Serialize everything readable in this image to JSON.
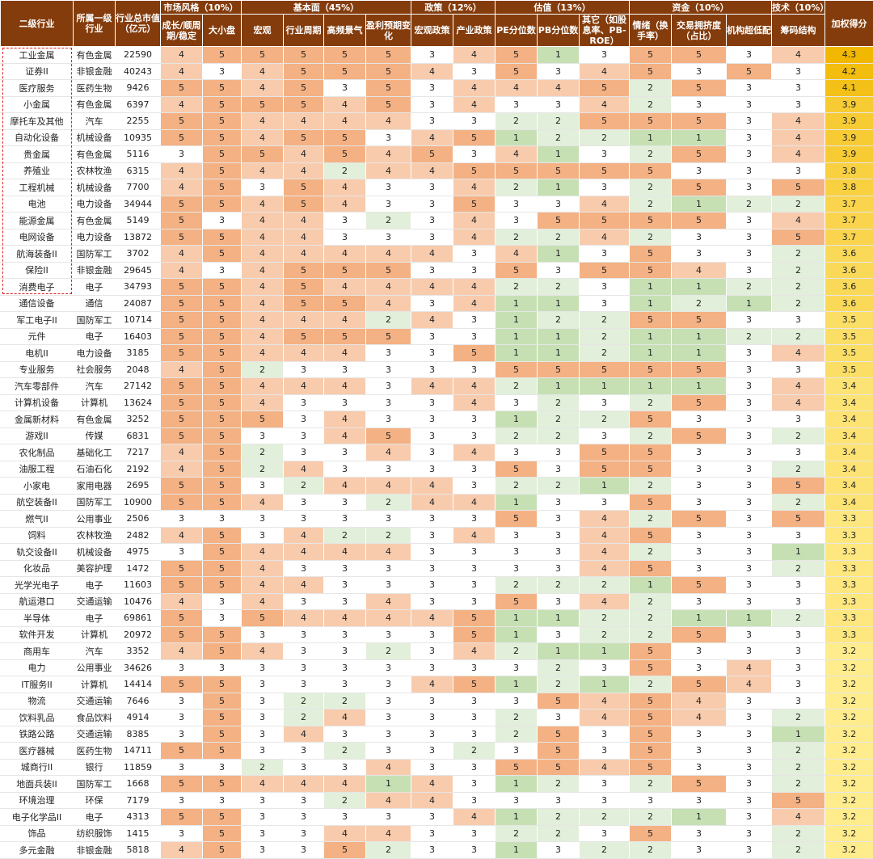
{
  "header": {
    "groups": [
      "市场风格（10%）",
      "基本面（45%）",
      "政策（12%）",
      "估值（13%）",
      "资金（10%）",
      "技术（10%）"
    ],
    "columns": [
      "二级行业",
      "所属一级行业",
      "行业总市值（亿元）",
      "成长/顺周期/稳定",
      "大小盘",
      "宏观",
      "行业周期",
      "高频景气",
      "盈利预期变化",
      "宏观政策",
      "产业政策",
      "PE分位数",
      "PB分位数",
      "其它（如股息率、PB-ROE）",
      "情绪（换手率）",
      "交易拥挤度（占比）",
      "机构超低配",
      "筹码结构",
      "加权得分"
    ]
  },
  "table": {
    "rows": [
      [
        "工业金属",
        "有色金属",
        22590,
        4,
        5,
        5,
        5,
        5,
        5,
        3,
        4,
        5,
        1,
        3,
        5,
        5,
        3,
        4,
        4.3
      ],
      [
        "证券II",
        "非银金融",
        40243,
        4,
        3,
        4,
        5,
        5,
        5,
        4,
        3,
        5,
        3,
        4,
        5,
        3,
        5,
        3,
        4.2
      ],
      [
        "医疗服务",
        "医药生物",
        9426,
        5,
        5,
        4,
        5,
        3,
        5,
        3,
        4,
        4,
        4,
        5,
        2,
        5,
        3,
        3,
        4.1
      ],
      [
        "小金属",
        "有色金属",
        6397,
        4,
        5,
        5,
        5,
        4,
        5,
        3,
        4,
        3,
        3,
        4,
        2,
        3,
        3,
        3,
        3.9
      ],
      [
        "摩托车及其他",
        "汽车",
        2255,
        5,
        5,
        4,
        4,
        4,
        4,
        3,
        3,
        2,
        2,
        5,
        5,
        5,
        3,
        4,
        3.9
      ],
      [
        "自动化设备",
        "机械设备",
        10935,
        5,
        5,
        4,
        5,
        5,
        3,
        4,
        5,
        1,
        2,
        2,
        1,
        1,
        3,
        4,
        3.9
      ],
      [
        "贵金属",
        "有色金属",
        5116,
        3,
        5,
        5,
        4,
        5,
        4,
        5,
        3,
        4,
        1,
        3,
        2,
        5,
        3,
        4,
        3.9
      ],
      [
        "养殖业",
        "农林牧渔",
        6315,
        4,
        5,
        4,
        4,
        2,
        4,
        4,
        5,
        5,
        5,
        5,
        5,
        3,
        3,
        3,
        3.8
      ],
      [
        "工程机械",
        "机械设备",
        7700,
        4,
        5,
        3,
        5,
        4,
        3,
        3,
        4,
        2,
        1,
        3,
        2,
        5,
        3,
        5,
        3.8
      ],
      [
        "电池",
        "电力设备",
        34944,
        5,
        5,
        4,
        5,
        4,
        3,
        3,
        5,
        3,
        3,
        4,
        2,
        1,
        2,
        2,
        3.7
      ],
      [
        "能源金属",
        "有色金属",
        5149,
        5,
        3,
        4,
        4,
        3,
        2,
        3,
        4,
        3,
        5,
        5,
        5,
        5,
        3,
        4,
        3.7
      ],
      [
        "电网设备",
        "电力设备",
        13872,
        5,
        5,
        4,
        4,
        3,
        3,
        3,
        4,
        2,
        2,
        4,
        2,
        3,
        3,
        5,
        3.7
      ],
      [
        "航海装备II",
        "国防军工",
        3702,
        4,
        5,
        4,
        4,
        4,
        4,
        4,
        3,
        4,
        1,
        3,
        5,
        3,
        3,
        2,
        3.6
      ],
      [
        "保险II",
        "非银金融",
        29645,
        4,
        3,
        4,
        5,
        5,
        5,
        3,
        3,
        5,
        3,
        5,
        5,
        4,
        3,
        2,
        3.6
      ],
      [
        "消费电子",
        "电子",
        34793,
        5,
        5,
        4,
        5,
        4,
        4,
        4,
        4,
        2,
        2,
        3,
        1,
        1,
        2,
        2,
        3.6
      ],
      [
        "通信设备",
        "通信",
        24087,
        5,
        5,
        4,
        5,
        5,
        4,
        3,
        4,
        1,
        1,
        3,
        1,
        2,
        1,
        2,
        3.6
      ],
      [
        "军工电子II",
        "国防军工",
        10714,
        5,
        5,
        4,
        4,
        4,
        2,
        4,
        3,
        1,
        2,
        2,
        5,
        5,
        3,
        3,
        3.5
      ],
      [
        "元件",
        "电子",
        16403,
        5,
        5,
        4,
        5,
        5,
        5,
        3,
        3,
        1,
        1,
        2,
        1,
        1,
        2,
        2,
        3.5
      ],
      [
        "电机II",
        "电力设备",
        3185,
        5,
        5,
        4,
        4,
        4,
        3,
        3,
        5,
        1,
        1,
        2,
        1,
        1,
        3,
        4,
        3.5
      ],
      [
        "专业服务",
        "社会服务",
        2048,
        4,
        5,
        2,
        3,
        3,
        3,
        3,
        3,
        5,
        5,
        5,
        5,
        5,
        3,
        3,
        3.5
      ],
      [
        "汽车零部件",
        "汽车",
        27142,
        5,
        5,
        4,
        4,
        4,
        3,
        4,
        4,
        2,
        1,
        1,
        1,
        1,
        3,
        4,
        3.4
      ],
      [
        "计算机设备",
        "计算机",
        13624,
        5,
        5,
        4,
        3,
        3,
        3,
        3,
        4,
        3,
        2,
        3,
        2,
        5,
        3,
        4,
        3.4
      ],
      [
        "金属新材料",
        "有色金属",
        3252,
        5,
        5,
        5,
        3,
        4,
        3,
        3,
        3,
        1,
        2,
        2,
        5,
        3,
        3,
        3,
        3.4
      ],
      [
        "游戏II",
        "传媒",
        6831,
        5,
        5,
        3,
        3,
        4,
        5,
        3,
        3,
        2,
        2,
        3,
        2,
        5,
        3,
        2,
        3.4
      ],
      [
        "农化制品",
        "基础化工",
        7217,
        4,
        5,
        2,
        3,
        3,
        4,
        3,
        4,
        3,
        3,
        5,
        5,
        3,
        3,
        3,
        3.4
      ],
      [
        "油服工程",
        "石油石化",
        2192,
        4,
        5,
        2,
        4,
        3,
        3,
        3,
        3,
        5,
        3,
        5,
        5,
        3,
        3,
        2,
        3.4
      ],
      [
        "小家电",
        "家用电器",
        2695,
        5,
        5,
        3,
        2,
        4,
        4,
        4,
        3,
        2,
        2,
        1,
        2,
        3,
        3,
        5,
        3.4
      ],
      [
        "航空装备II",
        "国防军工",
        10900,
        5,
        5,
        4,
        3,
        3,
        2,
        4,
        4,
        1,
        3,
        3,
        5,
        3,
        3,
        2,
        3.4
      ],
      [
        "燃气II",
        "公用事业",
        2506,
        3,
        3,
        3,
        3,
        3,
        3,
        3,
        3,
        5,
        3,
        4,
        2,
        5,
        3,
        5,
        3.3
      ],
      [
        "饲料",
        "农林牧渔",
        2482,
        4,
        5,
        3,
        4,
        2,
        2,
        3,
        4,
        3,
        3,
        4,
        5,
        3,
        3,
        3,
        3.3
      ],
      [
        "轨交设备II",
        "机械设备",
        4975,
        3,
        5,
        4,
        4,
        4,
        4,
        3,
        3,
        3,
        3,
        4,
        2,
        3,
        3,
        1,
        3.3
      ],
      [
        "化妆品",
        "美容护理",
        1472,
        5,
        5,
        4,
        3,
        3,
        3,
        3,
        3,
        3,
        3,
        4,
        5,
        3,
        3,
        2,
        3.3
      ],
      [
        "光学光电子",
        "电子",
        11603,
        5,
        5,
        4,
        4,
        3,
        3,
        3,
        3,
        2,
        2,
        2,
        1,
        5,
        3,
        3,
        3.3
      ],
      [
        "航运港口",
        "交通运输",
        10476,
        4,
        3,
        4,
        3,
        3,
        4,
        3,
        3,
        5,
        3,
        4,
        2,
        3,
        3,
        3,
        3.3
      ],
      [
        "半导体",
        "电子",
        69861,
        5,
        3,
        5,
        4,
        4,
        4,
        4,
        5,
        1,
        1,
        2,
        2,
        1,
        1,
        2,
        3.3
      ],
      [
        "软件开发",
        "计算机",
        20972,
        5,
        5,
        3,
        3,
        3,
        3,
        3,
        5,
        1,
        3,
        2,
        2,
        5,
        3,
        3,
        3.3
      ],
      [
        "商用车",
        "汽车",
        3352,
        4,
        5,
        4,
        3,
        3,
        2,
        3,
        4,
        2,
        1,
        1,
        5,
        3,
        3,
        3,
        3.2
      ],
      [
        "电力",
        "公用事业",
        34626,
        3,
        3,
        3,
        3,
        3,
        3,
        3,
        3,
        3,
        2,
        3,
        5,
        3,
        4,
        3,
        3.2
      ],
      [
        "IT服务II",
        "计算机",
        14414,
        5,
        5,
        3,
        3,
        3,
        3,
        4,
        5,
        1,
        2,
        1,
        2,
        5,
        4,
        3,
        3.2
      ],
      [
        "物流",
        "交通运输",
        7646,
        3,
        5,
        3,
        2,
        2,
        3,
        3,
        3,
        3,
        5,
        4,
        5,
        4,
        3,
        3,
        3.2
      ],
      [
        "饮料乳品",
        "食品饮料",
        4914,
        3,
        5,
        3,
        2,
        4,
        3,
        3,
        3,
        2,
        3,
        4,
        5,
        4,
        3,
        2,
        3.2
      ],
      [
        "铁路公路",
        "交通运输",
        8385,
        3,
        5,
        3,
        4,
        3,
        3,
        3,
        3,
        2,
        5,
        3,
        5,
        3,
        3,
        1,
        3.2
      ],
      [
        "医疗器械",
        "医药生物",
        14711,
        5,
        5,
        3,
        3,
        2,
        3,
        3,
        2,
        3,
        5,
        3,
        5,
        3,
        3,
        2,
        3.2
      ],
      [
        "城商行II",
        "银行",
        11859,
        3,
        3,
        2,
        3,
        3,
        4,
        3,
        3,
        5,
        5,
        4,
        5,
        3,
        3,
        2,
        3.2
      ],
      [
        "地面兵装II",
        "国防军工",
        1668,
        5,
        5,
        4,
        4,
        4,
        1,
        4,
        3,
        1,
        2,
        3,
        2,
        5,
        3,
        2,
        3.2
      ],
      [
        "环境治理",
        "环保",
        7179,
        3,
        3,
        3,
        3,
        2,
        4,
        4,
        3,
        3,
        3,
        3,
        3,
        3,
        3,
        5,
        3.2
      ],
      [
        "电子化学品II",
        "电子",
        4313,
        5,
        5,
        3,
        3,
        3,
        3,
        3,
        4,
        1,
        2,
        2,
        2,
        1,
        3,
        4,
        3.2
      ],
      [
        "饰品",
        "纺织服饰",
        1415,
        3,
        5,
        3,
        3,
        4,
        4,
        3,
        3,
        2,
        2,
        3,
        5,
        3,
        3,
        2,
        3.2
      ],
      [
        "多元金融",
        "非银金融",
        5818,
        4,
        5,
        3,
        3,
        5,
        2,
        3,
        3,
        1,
        3,
        2,
        2,
        3,
        3,
        2,
        3.2
      ]
    ]
  }
}
